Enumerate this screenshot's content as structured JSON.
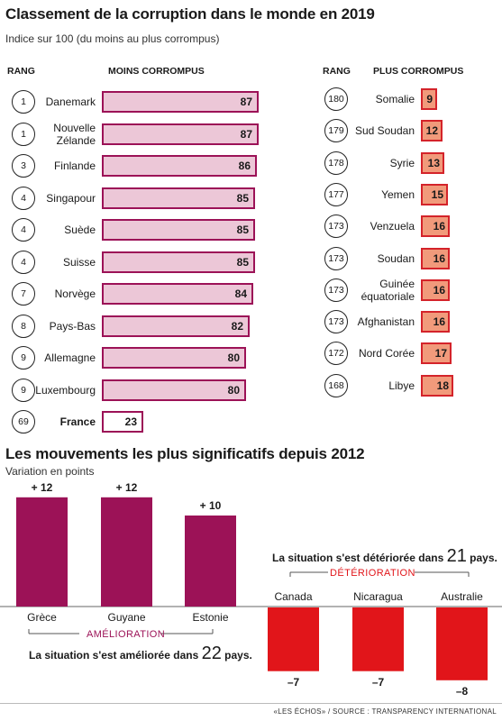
{
  "top": {
    "title": "Classement de la corruption dans le monde en 2019",
    "subtitle": "Indice sur 100 (du moins au plus corrompus)",
    "rank_header_left": "RANG",
    "least_header": "MOINS CORROMPUS",
    "rank_header_right": "RANG",
    "most_header": "PLUS CORROMPUS"
  },
  "bottom": {
    "title": "Les mouvements les plus significatifs depuis 2012",
    "subtitle": "Variation en points",
    "improvement_label": "AMÉLIORATION",
    "deterioration_label": "DÉTÉRIORATION",
    "improve_note_prefix": "La situation s'est améliorée dans ",
    "improve_note_count": "22",
    "improve_note_suffix": " pays.",
    "deter_note_prefix": "La situation s'est détériorée dans ",
    "deter_note_count": "21",
    "deter_note_suffix": " pays."
  },
  "credit": "«LES ÉCHOS» / SOURCE : TRANSPARENCY INTERNATIONAL",
  "colors": {
    "improve": "#9c1257",
    "least_fill": "#ecc7d7",
    "deteriorate": "#e1151a",
    "most_fill": "#f19a7b"
  },
  "chart_data": [
    {
      "type": "bar",
      "title": "MOINS CORROMPUS",
      "categories": [
        "Danemark",
        "Nouvelle Zélande",
        "Finlande",
        "Singapour",
        "Suède",
        "Suisse",
        "Norvège",
        "Pays-Bas",
        "Allemagne",
        "Luxembourg",
        "France"
      ],
      "ranks": [
        "1",
        "1",
        "3",
        "4",
        "4",
        "4",
        "7",
        "8",
        "9",
        "9",
        "69"
      ],
      "values": [
        87,
        87,
        86,
        85,
        85,
        85,
        84,
        82,
        80,
        80,
        23
      ],
      "xlim": [
        0,
        100
      ]
    },
    {
      "type": "bar",
      "title": "PLUS CORROMPUS",
      "categories": [
        "Somalie",
        "Sud Soudan",
        "Syrie",
        "Yemen",
        "Venzuela",
        "Soudan",
        "Guinée équatoriale",
        "Afghanistan",
        "Nord Corée",
        "Libye"
      ],
      "ranks": [
        "180",
        "179",
        "178",
        "177",
        "173",
        "173",
        "173",
        "173",
        "172",
        "168"
      ],
      "values": [
        9,
        12,
        13,
        15,
        16,
        16,
        16,
        16,
        17,
        18
      ],
      "xlim": [
        0,
        100
      ]
    },
    {
      "type": "bar",
      "title": "Les mouvements les plus significatifs depuis 2012",
      "ylabel": "Variation en points",
      "categories": [
        "Grèce",
        "Guyane",
        "Estonie",
        "Canada",
        "Nicaragua",
        "Australie"
      ],
      "values": [
        12,
        12,
        10,
        -7,
        -7,
        -8
      ],
      "value_labels": [
        "+ 12",
        "+ 12",
        "+ 10",
        "–7",
        "–7",
        "–8"
      ]
    }
  ]
}
